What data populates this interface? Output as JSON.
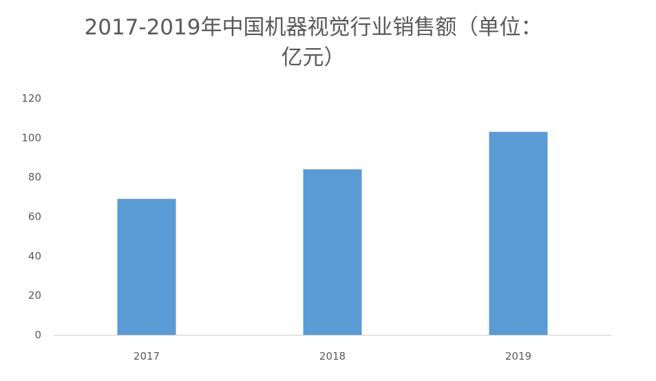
{
  "chart_data": {
    "type": "bar",
    "title_lines": [
      "2017-2019年中国机器视觉行业销售额（单位：",
      "亿元）"
    ],
    "categories": [
      "2017",
      "2018",
      "2019"
    ],
    "values": [
      69,
      84,
      103
    ],
    "ylim": [
      0,
      120
    ],
    "yticks": [
      "0",
      "20",
      "40",
      "60",
      "80",
      "100",
      "120"
    ],
    "xlabel": "",
    "ylabel": "",
    "grid": false,
    "legend": "none",
    "bar_color": "#5b9bd5",
    "axis_color": "#d9d9d9",
    "text_color": "#595959"
  }
}
